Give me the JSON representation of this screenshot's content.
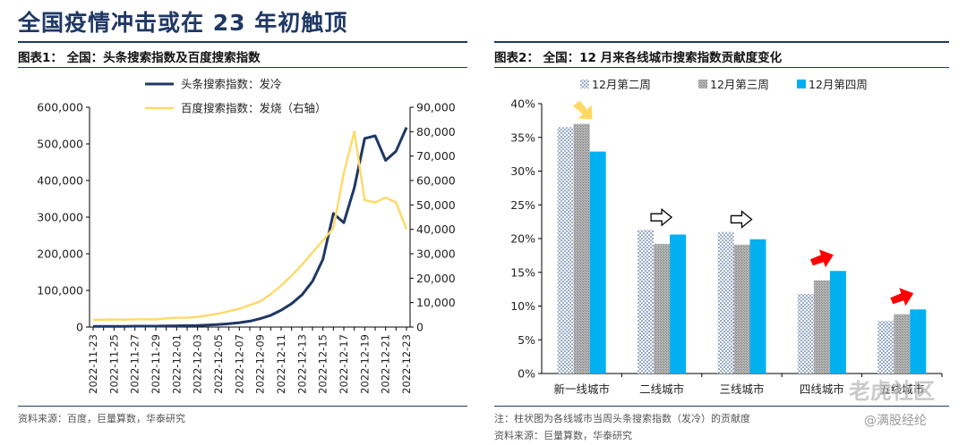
{
  "page": {
    "title": "全国疫情冲击或在 23 年初触顶",
    "watermark_main": "老虎社区",
    "watermark_handle": "@满股经纶"
  },
  "colors": {
    "navy": "#1f3864",
    "yellow": "#ffd966",
    "gray_bar": "#a6a6a6",
    "cyan_bar": "#00b0f0",
    "dot_fill": "#dce6f2",
    "arrow_red": "#ff0000",
    "arrow_yellow": "#ffd966"
  },
  "chart_data": [
    {
      "type": "line",
      "panel_title": "图表1： 全国：头条搜索指数及百度搜索指数",
      "source": "资料来源：百度，巨量算数，华泰研究",
      "x": [
        "2022-11-23",
        "2022-11-24",
        "2022-11-25",
        "2022-11-26",
        "2022-11-27",
        "2022-11-28",
        "2022-11-29",
        "2022-11-30",
        "2022-12-01",
        "2022-12-02",
        "2022-12-03",
        "2022-12-04",
        "2022-12-05",
        "2022-12-06",
        "2022-12-07",
        "2022-12-08",
        "2022-12-09",
        "2022-12-10",
        "2022-12-11",
        "2022-12-12",
        "2022-12-13",
        "2022-12-14",
        "2022-12-15",
        "2022-12-16",
        "2022-12-17",
        "2022-12-18",
        "2022-12-19",
        "2022-12-20",
        "2022-12-21",
        "2022-12-22",
        "2022-12-23"
      ],
      "x_tick_labels": [
        "2022-11-23",
        "2022-11-25",
        "2022-11-27",
        "2022-11-29",
        "2022-12-01",
        "2022-12-03",
        "2022-12-05",
        "2022-12-07",
        "2022-12-09",
        "2022-12-11",
        "2022-12-13",
        "2022-12-15",
        "2022-12-17",
        "2022-12-19",
        "2022-12-21",
        "2022-12-23"
      ],
      "y_left": {
        "lim": [
          0,
          600000
        ],
        "ticks": [
          0,
          100000,
          200000,
          300000,
          400000,
          500000,
          600000
        ],
        "tick_labels": [
          "0",
          "100,000",
          "200,000",
          "300,000",
          "400,000",
          "500,000",
          "600,000"
        ]
      },
      "y_right": {
        "lim": [
          0,
          90000
        ],
        "ticks": [
          0,
          10000,
          20000,
          30000,
          40000,
          50000,
          60000,
          70000,
          80000,
          90000
        ],
        "tick_labels": [
          "0",
          "10,000",
          "20,000",
          "30,000",
          "40,000",
          "50,000",
          "60,000",
          "70,000",
          "80,000",
          "90,000"
        ]
      },
      "legend_position": "top",
      "series": [
        {
          "name": "头条搜索指数：发冷",
          "axis": "left",
          "color": "#1f3864",
          "values": [
            2000,
            2000,
            2000,
            2000,
            2500,
            2500,
            2500,
            3000,
            3500,
            4000,
            4500,
            5500,
            7000,
            9000,
            12000,
            16000,
            23000,
            32000,
            46000,
            64000,
            88000,
            125000,
            185000,
            310000,
            285000,
            380000,
            515000,
            522000,
            455000,
            480000,
            545000
          ]
        },
        {
          "name": "百度搜索指数：发烧（右轴）",
          "axis": "right",
          "color": "#ffd966",
          "values": [
            3000,
            3000,
            3100,
            3000,
            3200,
            3200,
            3100,
            3600,
            3800,
            3800,
            4200,
            4800,
            5500,
            6500,
            7500,
            9000,
            10500,
            13500,
            17000,
            21000,
            25500,
            30500,
            35500,
            40500,
            63000,
            80000,
            52000,
            51000,
            53000,
            51000,
            40000
          ]
        }
      ]
    },
    {
      "type": "bar",
      "panel_title": "图表2： 全国：12 月来各线城市搜索指数贡献度变化",
      "note": "注：柱状图为各线城市当周头条搜索指数（发冷）的贡献度",
      "source": "资料来源：巨量算数，华泰研究",
      "categories": [
        "新一线城市",
        "二线城市",
        "三线城市",
        "四线城市",
        "五线城市"
      ],
      "y": {
        "lim": [
          0,
          40
        ],
        "ticks": [
          0,
          5,
          10,
          15,
          20,
          25,
          30,
          35,
          40
        ],
        "tick_labels": [
          "0%",
          "5%",
          "10%",
          "15%",
          "20%",
          "25%",
          "30%",
          "35%",
          "40%"
        ]
      },
      "legend_position": "top",
      "series": [
        {
          "name": "12月第二周",
          "values": [
            36.5,
            21.3,
            21.0,
            11.8,
            7.8
          ]
        },
        {
          "name": "12月第三周",
          "values": [
            37.0,
            19.2,
            19.1,
            13.8,
            8.8
          ]
        },
        {
          "name": "12月第四周",
          "values": [
            32.9,
            20.6,
            19.9,
            15.2,
            9.5
          ]
        }
      ],
      "arrows": [
        {
          "category": "新一线城市",
          "direction": "down",
          "color": "#ffd966"
        },
        {
          "category": "二线城市",
          "direction": "right",
          "color": "#ffffff"
        },
        {
          "category": "三线城市",
          "direction": "right",
          "color": "#ffffff"
        },
        {
          "category": "四线城市",
          "direction": "up-right",
          "color": "#ff0000"
        },
        {
          "category": "五线城市",
          "direction": "up-right",
          "color": "#ff0000"
        }
      ]
    }
  ]
}
